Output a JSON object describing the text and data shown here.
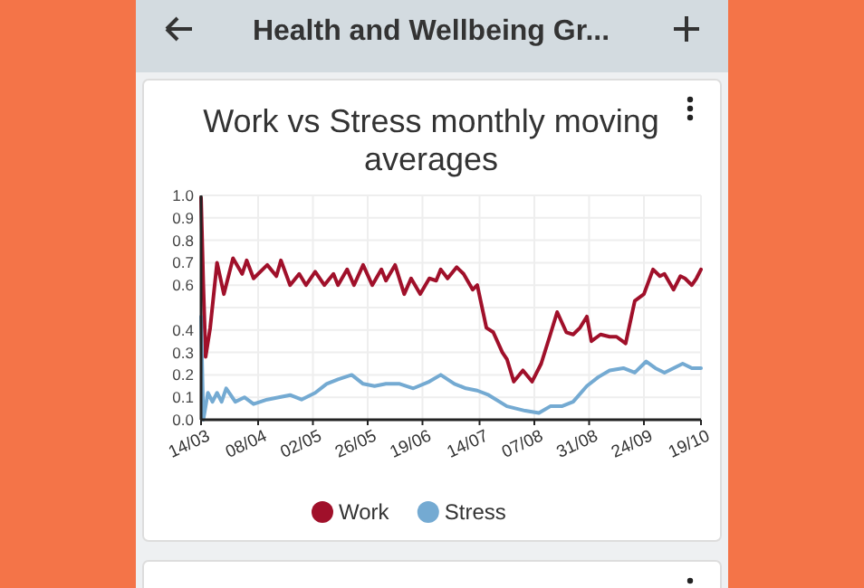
{
  "chart_data": {
    "type": "line",
    "title": "Work vs Stress monthly moving averages",
    "annotations": [
      "Health and Wellbeing Gr..."
    ],
    "xlim": [
      "--03-14",
      "--10-19"
    ],
    "xticks": [
      {
        "value": "--03-14",
        "label": "14/03"
      },
      {
        "value": "--04-08",
        "label": "08/04"
      },
      {
        "value": "--05-02",
        "label": "02/05"
      },
      {
        "value": "--05-26",
        "label": "26/05"
      },
      {
        "value": "--06-19",
        "label": "19/06"
      },
      {
        "value": "--07-14",
        "label": "14/07"
      },
      {
        "value": "--08-07",
        "label": "07/08"
      },
      {
        "value": "--08-31",
        "label": "31/08"
      },
      {
        "value": "--09-24",
        "label": "24/09"
      },
      {
        "value": "--10-19",
        "label": "19/10"
      }
    ],
    "ylim": [
      0,
      1
    ],
    "yticks": [
      {
        "value": 0,
        "label": "0.0"
      },
      0.1,
      0.2,
      0.3,
      0.4,
      {
        "value": 0.5,
        "label": null
      },
      0.6,
      0.7,
      0.8,
      0.9,
      {
        "value": 1,
        "label": "1.0"
      }
    ],
    "grid": true,
    "legend": "bottom",
    "marker": "none",
    "line_style": "solid",
    "series": [
      {
        "name": "Work",
        "color": "#a0102a",
        "x": [
          "--03-14",
          "--03-15",
          "--03-16",
          "--03-18",
          "--03-21",
          "--03-24",
          "--03-28",
          "--04-01",
          "--04-03",
          "--04-06",
          "--04-12",
          "--04-16",
          "--04-18",
          "--04-22",
          "--04-26",
          "--04-29",
          "--05-03",
          "--05-07",
          "--05-11",
          "--05-13",
          "--05-17",
          "--05-20",
          "--05-24",
          "--05-28",
          "--06-01",
          "--06-03",
          "--06-07",
          "--06-11",
          "--06-14",
          "--06-18",
          "--06-22",
          "--06-25",
          "--06-27",
          "--06-30",
          "--07-04",
          "--07-07",
          "--07-11",
          "--07-13",
          "--07-17",
          "--07-20",
          "--07-24",
          "--07-26",
          "--07-29",
          "--08-02",
          "--08-06",
          "--08-10",
          "--08-14",
          "--08-17",
          "--08-21",
          "--08-24",
          "--08-27",
          "--08-30",
          "--09-01",
          "--09-05",
          "--09-09",
          "--09-12",
          "--09-16",
          "--09-20",
          "--09-24",
          "--09-28",
          "--10-01",
          "--10-03",
          "--10-07",
          "--10-10",
          "--10-12",
          "--10-15",
          "--10-17",
          "--10-19"
        ],
        "values": [
          0.99,
          0.6,
          0.28,
          0.41,
          0.7,
          0.56,
          0.72,
          0.65,
          0.71,
          0.63,
          0.69,
          0.64,
          0.71,
          0.6,
          0.65,
          0.6,
          0.66,
          0.6,
          0.65,
          0.6,
          0.67,
          0.6,
          0.69,
          0.6,
          0.67,
          0.62,
          0.69,
          0.56,
          0.63,
          0.56,
          0.63,
          0.62,
          0.67,
          0.63,
          0.68,
          0.65,
          0.58,
          0.6,
          0.41,
          0.39,
          0.3,
          0.27,
          0.17,
          0.22,
          0.17,
          0.25,
          0.38,
          0.48,
          0.39,
          0.38,
          0.41,
          0.46,
          0.35,
          0.38,
          0.37,
          0.37,
          0.34,
          0.53,
          0.56,
          0.67,
          0.64,
          0.65,
          0.58,
          0.64,
          0.63,
          0.6,
          0.63,
          0.67
        ]
      },
      {
        "name": "Stress",
        "color": "#74aad2",
        "x": [
          "--03-14",
          "--03-15",
          "--03-17",
          "--03-19",
          "--03-21",
          "--03-23",
          "--03-25",
          "--03-29",
          "--04-02",
          "--04-06",
          "--04-12",
          "--04-17",
          "--04-22",
          "--04-27",
          "--05-03",
          "--05-08",
          "--05-13",
          "--05-19",
          "--05-24",
          "--05-29",
          "--06-03",
          "--06-09",
          "--06-15",
          "--06-22",
          "--06-27",
          "--07-03",
          "--07-08",
          "--07-13",
          "--07-18",
          "--07-26",
          "--08-03",
          "--08-09",
          "--08-14",
          "--08-19",
          "--08-24",
          "--08-30",
          "--09-04",
          "--09-09",
          "--09-15",
          "--09-20",
          "--09-25",
          "--09-29",
          "--10-03",
          "--10-07",
          "--10-11",
          "--10-15",
          "--10-19"
        ],
        "values": [
          0.46,
          0,
          0.12,
          0.08,
          0.12,
          0.08,
          0.14,
          0.08,
          0.1,
          0.07,
          0.09,
          0.1,
          0.11,
          0.09,
          0.12,
          0.16,
          0.18,
          0.2,
          0.16,
          0.15,
          0.16,
          0.16,
          0.14,
          0.17,
          0.2,
          0.16,
          0.14,
          0.13,
          0.11,
          0.06,
          0.04,
          0.03,
          0.06,
          0.06,
          0.08,
          0.15,
          0.19,
          0.22,
          0.23,
          0.21,
          0.26,
          0.23,
          0.21,
          0.23,
          0.25,
          0.23,
          0.23
        ]
      }
    ]
  }
}
